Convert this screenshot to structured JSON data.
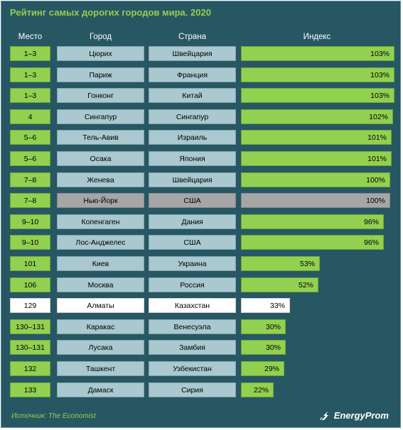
{
  "title": "Рейтинг самых дорогих городов мира. 2020",
  "headers": {
    "rank": "Место",
    "city": "Город",
    "country": "Страна",
    "index": "Индекс"
  },
  "source": "Источник: The Economist",
  "logo_text": "EnergyProm",
  "colors": {
    "background": "#275763",
    "accent": "#92d050",
    "cell": "#a9c8cf",
    "highlight_gray": "#a6a6a6",
    "highlight_white": "#ffffff"
  },
  "chart_data": {
    "type": "bar",
    "title": "Рейтинг самых дорогих городов мира. 2020",
    "orientation": "horizontal",
    "rows": [
      {
        "rank": "1–3",
        "city": "Цюрих",
        "country": "Швейцария",
        "value": 103,
        "label": "103%",
        "style": "normal"
      },
      {
        "rank": "1–3",
        "city": "Париж",
        "country": "Франция",
        "value": 103,
        "label": "103%",
        "style": "normal"
      },
      {
        "rank": "1–3",
        "city": "Гонконг",
        "country": "Китай",
        "value": 103,
        "label": "103%",
        "style": "normal"
      },
      {
        "rank": "4",
        "city": "Сингапур",
        "country": "Сингапур",
        "value": 102,
        "label": "102%",
        "style": "normal"
      },
      {
        "rank": "5–6",
        "city": "Тель-Авив",
        "country": "Израиль",
        "value": 101,
        "label": "101%",
        "style": "normal"
      },
      {
        "rank": "5–6",
        "city": "Осака",
        "country": "Япония",
        "value": 101,
        "label": "101%",
        "style": "normal"
      },
      {
        "rank": "7–8",
        "city": "Женева",
        "country": "Швейцария",
        "value": 100,
        "label": "100%",
        "style": "normal"
      },
      {
        "rank": "7–8",
        "city": "Нью-Йорк",
        "country": "США",
        "value": 100,
        "label": "100%",
        "style": "gray"
      },
      {
        "rank": "9–10",
        "city": "Копенгаген",
        "country": "Дания",
        "value": 96,
        "label": "96%",
        "style": "normal"
      },
      {
        "rank": "9–10",
        "city": "Лос-Анджелес",
        "country": "США",
        "value": 96,
        "label": "96%",
        "style": "normal"
      },
      {
        "rank": "101",
        "city": "Киев",
        "country": "Украина",
        "value": 53,
        "label": "53%",
        "style": "normal"
      },
      {
        "rank": "106",
        "city": "Москва",
        "country": "Россия",
        "value": 52,
        "label": "52%",
        "style": "normal"
      },
      {
        "rank": "129",
        "city": "Алматы",
        "country": "Казахстан",
        "value": 33,
        "label": "33%",
        "style": "white"
      },
      {
        "rank": "130–131",
        "city": "Каракас",
        "country": "Венесуэла",
        "value": 30,
        "label": "30%",
        "style": "normal"
      },
      {
        "rank": "130–131",
        "city": "Лусака",
        "country": "Замбия",
        "value": 30,
        "label": "30%",
        "style": "normal"
      },
      {
        "rank": "132",
        "city": "Ташкент",
        "country": "Узбекистан",
        "value": 29,
        "label": "29%",
        "style": "normal"
      },
      {
        "rank": "133",
        "city": "Дамаск",
        "country": "Сирия",
        "value": 22,
        "label": "22%",
        "style": "normal"
      }
    ],
    "xlim": [
      0,
      103
    ]
  }
}
